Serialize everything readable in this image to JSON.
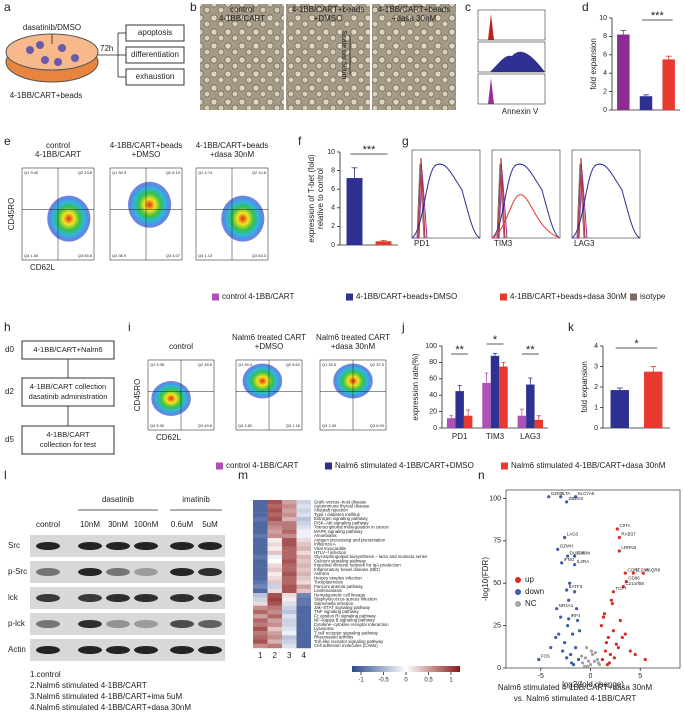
{
  "a": {
    "label": "a",
    "treatment": "dasatinib/DMSO",
    "time": "72h",
    "outcomes": [
      "apoptosis",
      "differentiation",
      "exhaustion"
    ],
    "cells": "4-1BB/CART+beads"
  },
  "b": {
    "label": "b",
    "images": [
      [
        "control",
        "4-1BB/CART"
      ],
      [
        "4-1BB/CART+beads",
        "+DMSO"
      ],
      [
        "4-1BB/CART+beads",
        "+dasa 30nM"
      ]
    ],
    "scale": "Scale bar 50um"
  },
  "c": {
    "label": "c",
    "xlabel": "Annexin V"
  },
  "d": {
    "label": "d",
    "type": "bar",
    "ylabel": "fold expansion",
    "values": [
      8.2,
      1.5,
      5.5
    ],
    "errors": [
      0.45,
      0.15,
      0.35
    ],
    "colors": [
      "#8e2b8f",
      "#2e3192",
      "#e8392f"
    ],
    "ylim": [
      0,
      10
    ],
    "yticks": [
      0,
      2,
      4,
      6,
      8,
      10
    ],
    "significance": "***"
  },
  "e": {
    "label": "e",
    "titles": [
      [
        "control",
        "4-1BB/CART"
      ],
      [
        "4-1BB/CART+beads",
        "+DMSO"
      ],
      [
        "4-1BB/CART+beads",
        "+dasa 30nM"
      ]
    ],
    "ylabel": "CD45RO",
    "xlabel": "CD62L",
    "quadrants": [
      [
        "Q1 9.40",
        "Q2 23.8",
        "Q4 1.60",
        "Q3 65.8"
      ],
      [
        "Q1 50.9",
        "Q2 8.19",
        "Q4 36.9",
        "Q3 4.07"
      ],
      [
        "Q1 4.74",
        "Q2 10.8",
        "Q4 1.13",
        "Q3 83.3"
      ]
    ]
  },
  "f": {
    "label": "f",
    "type": "bar",
    "ylabel": [
      "expression of T-bet (fold)",
      "relative to control"
    ],
    "values": [
      7.2,
      0.4
    ],
    "errors": [
      1.1,
      0.1
    ],
    "colors": [
      "#2e3192",
      "#e8392f"
    ],
    "ylim": [
      0,
      10
    ],
    "yticks": [
      0,
      2,
      4,
      6,
      8,
      10
    ],
    "significance": "***"
  },
  "g": {
    "label": "g",
    "markers": [
      "PD1",
      "TIM3",
      "LAG3"
    ]
  },
  "legend1": [
    {
      "name": "control 4-1BB/CART",
      "color": "#b04fb5"
    },
    {
      "name": "4-1BB/CART+beads+DMSO",
      "color": "#2e3192"
    },
    {
      "name": "4-1BB/CART+beads+dasa 30nM",
      "color": "#e8392f"
    },
    {
      "name": "isotype",
      "color": "#7d6b63"
    }
  ],
  "h": {
    "label": "h",
    "steps": [
      {
        "day": "d0",
        "text": [
          "4-1BB/CART+Nalm6"
        ]
      },
      {
        "day": "d2",
        "text": [
          "4-1BB/CART collection",
          "dasatinib administration"
        ]
      },
      {
        "day": "d5",
        "text": [
          "4-1BB/CART",
          "collection for test"
        ]
      }
    ]
  },
  "i": {
    "label": "i",
    "titles": [
      [
        "control"
      ],
      [
        "Nalm6 treated CART",
        "+DMSO"
      ],
      [
        "Nalm6 treated CART",
        "+dasa 30nM"
      ]
    ],
    "ylabel": "CD45RO",
    "xlabel": "CD62L",
    "quadrants": [
      [
        "Q1 5.35",
        "Q2 39.5",
        "Q4 5.30",
        "Q3 49.8"
      ],
      [
        "Q1 90.4",
        "Q2 5.62",
        "Q4 2.82",
        "Q3 1.16"
      ],
      [
        "Q1 53.5",
        "Q2 37.3",
        "Q4 2.30",
        "Q3 6.90"
      ]
    ]
  },
  "j": {
    "label": "j",
    "type": "grouped-bar",
    "ylabel": "expression rate(%)",
    "categories": [
      "PD1",
      "TIM3",
      "LAG3"
    ],
    "series": [
      {
        "name": "control 4-1BB/CART",
        "color": "#b04fb5",
        "values": [
          12,
          55,
          15
        ],
        "errors": [
          3,
          12,
          8
        ]
      },
      {
        "name": "Nalm6 stimulated 4-1BB/CART+DMSO",
        "color": "#2e3192",
        "values": [
          45,
          88,
          53
        ],
        "errors": [
          7,
          3,
          8
        ]
      },
      {
        "name": "Nalm6 stimulated 4-1BB/CART+dasa 30nM",
        "color": "#e8392f",
        "values": [
          15,
          75,
          10
        ],
        "errors": [
          7,
          5,
          5
        ]
      }
    ],
    "ylim": [
      0,
      100
    ],
    "yticks": [
      0,
      20,
      40,
      60,
      80,
      100
    ],
    "significance": [
      "**",
      "*",
      "**"
    ]
  },
  "k": {
    "label": "k",
    "type": "bar",
    "ylabel": "fold expansion",
    "values": [
      1.85,
      2.75
    ],
    "errors": [
      0.1,
      0.25
    ],
    "colors": [
      "#2e3192",
      "#e8392f"
    ],
    "ylim": [
      0,
      4
    ],
    "yticks": [
      0,
      1,
      2,
      3,
      4
    ],
    "significance": "*"
  },
  "l": {
    "label": "l",
    "lanes": [
      "control",
      "10nM",
      "30nM",
      "100nM",
      "0.6uM",
      "5uM"
    ],
    "drugs": [
      "dasatinib",
      "imatinib"
    ],
    "proteins": [
      "Src",
      "p-Src",
      "lck",
      "p-lck",
      "Actin"
    ],
    "notes": [
      "1.control",
      "2.Nalm6  stimulated 4-1BB/CART",
      "3.Nalm6  stimulated 4-1BB/CART+ima 5uM",
      "4.Nalm6  stimulated 4-1BB/CART+dasa 30nM"
    ]
  },
  "m": {
    "label": "m",
    "type": "heatmap",
    "columns": [
      "1",
      "2",
      "3",
      "4"
    ],
    "rows": [
      "Graft−versus−host disease",
      "Autoimmune thyroid disease",
      "Allograft rejection",
      "Type I diabetes mellitus",
      "Estrogen signaling pathway",
      "PI3K−Akt signaling pathway",
      "Transcriptional misregulation in cancer",
      "MAPK signaling pathway",
      "Amoebiasis",
      "Antigen processing and presentation",
      "Influenza A",
      "Viral myocarditis",
      "HTLV−I infection",
      "Glycosphingolipid biosynthesis − lacto and neolacto series",
      "Calcium signaling pathway",
      "Intestinal immune network for IgA production",
      "Inflammatory bowel disease (IBD)",
      "Asthma",
      "Herpes simplex infection",
      "Toxoplasmosis",
      "Fanconi anemia pathway",
      "Leishmaniasis",
      "Hematopoietic cell lineage",
      "Staphylococcus aureus infection",
      "Salmonella infection",
      "Jak−STAT signaling pathway",
      "TNF signaling pathway",
      "Fc epsilon RI signaling pathway",
      "NF−kappa B signaling pathway",
      "Cytokine−cytokine receptor interaction",
      "Lysosome",
      "T cell receptor signaling pathway",
      "Rheumatoid arthritis",
      "Toll−like receptor signaling pathway",
      "Cell adhesion molecules (CAMs)"
    ],
    "values": [
      [
        -1,
        0.9,
        0.5,
        -0.3
      ],
      [
        -1,
        0.8,
        0.6,
        -0.2
      ],
      [
        -1,
        0.9,
        0.5,
        -0.3
      ],
      [
        -1,
        0.8,
        0.6,
        -0.2
      ],
      [
        -0.9,
        0.9,
        0.4,
        -0.4
      ],
      [
        -1,
        0.7,
        0.7,
        -0.3
      ],
      [
        -1,
        0.6,
        0.7,
        -0.2
      ],
      [
        -1,
        0.5,
        0.8,
        -0.1
      ],
      [
        -0.9,
        0.6,
        0.6,
        -0.1
      ],
      [
        -1,
        0.1,
        0.9,
        0.2
      ],
      [
        -1,
        0.2,
        0.9,
        0.3
      ],
      [
        -1,
        0.1,
        0.8,
        0.4
      ],
      [
        -1,
        0.3,
        0.8,
        0.2
      ],
      [
        -0.9,
        -0.1,
        0.8,
        0.4
      ],
      [
        -1,
        0,
        0.9,
        0.3
      ],
      [
        -1,
        0.2,
        0.8,
        0.4
      ],
      [
        -1,
        0.3,
        0.8,
        0.3
      ],
      [
        -1,
        0.1,
        0.9,
        0.4
      ],
      [
        -1,
        0.2,
        0.8,
        0.3
      ],
      [
        -0.9,
        0.3,
        0.8,
        0.2
      ],
      [
        -0.8,
        -0.3,
        0.9,
        0.5
      ],
      [
        -1,
        0.2,
        0.9,
        0.3
      ],
      [
        -0.4,
        0.9,
        0.2,
        -0.8
      ],
      [
        -0.3,
        1,
        0.1,
        -0.9
      ],
      [
        0.2,
        0.9,
        -0.2,
        -0.9
      ],
      [
        0.6,
        0.7,
        -0.3,
        -1
      ],
      [
        0.8,
        0.6,
        -0.4,
        -1
      ],
      [
        0.5,
        0.8,
        -0.2,
        -1
      ],
      [
        0.8,
        0.5,
        -0.3,
        -1
      ],
      [
        0.7,
        0.6,
        -0.3,
        -1
      ],
      [
        0.9,
        0.3,
        -0.2,
        -1
      ],
      [
        0.7,
        0.5,
        -0.1,
        -1
      ],
      [
        0.8,
        0.6,
        -0.4,
        -1
      ],
      [
        0.9,
        0.4,
        -0.3,
        -1
      ],
      [
        0.6,
        0.7,
        -0.2,
        -1
      ]
    ],
    "clim": [
      -1.2,
      1.2
    ],
    "cticks": [
      -1,
      -0.5,
      0,
      0.5,
      1
    ]
  },
  "n": {
    "label": "n",
    "type": "scatter",
    "xlabel": "log2(fold change)",
    "ylabel": "-log10(FDR)",
    "caption": [
      "Nalm6  stimulated 4-1BB/CART+dasa 30nM",
      "vs. Nalm6  stimulated 4-1BB/CART"
    ],
    "xlim": [
      -8.5,
      9
    ],
    "ylim": [
      0,
      105
    ],
    "xticks": [
      -5,
      0,
      5
    ],
    "yticks": [
      0,
      25,
      50,
      75,
      100
    ],
    "series": [
      {
        "name": "up",
        "color": "#d62e26",
        "x": [
          1.2,
          1.5,
          1.8,
          2.0,
          2.3,
          2.6,
          3.0,
          1.4,
          1.9,
          2.2,
          2.8,
          3.5,
          1.1,
          1.6,
          2.4,
          4.0,
          1.3,
          2.1,
          1.7,
          3.2,
          4.5,
          5.5
        ],
        "y": [
          5,
          10,
          18,
          8,
          22,
          14,
          28,
          32,
          3,
          38,
          12,
          20,
          25,
          15,
          6,
          10,
          30,
          40,
          2,
          18,
          8,
          5
        ]
      },
      {
        "name": "down",
        "color": "#3f5ca8",
        "x": [
          -1.2,
          -1.5,
          -1.8,
          -2.0,
          -2.3,
          -2.6,
          -3.0,
          -1.4,
          -1.9,
          -2.2,
          -2.8,
          -3.5,
          -1.1,
          -1.6,
          -2.4,
          -4.0,
          -1.3,
          -2.1,
          -1.7,
          -3.2
        ],
        "y": [
          5,
          12,
          20,
          8,
          25,
          15,
          30,
          35,
          3,
          40,
          10,
          18,
          22,
          45,
          6,
          12,
          28,
          50,
          2,
          20
        ]
      },
      {
        "name": "NC",
        "color": "#a8a39c",
        "x": [
          -0.8,
          -0.5,
          -0.3,
          0,
          0.2,
          0.4,
          0.7,
          0.9,
          -0.9,
          -0.6,
          0.1,
          0.5,
          -0.2,
          0.8,
          -0.4
        ],
        "y": [
          3,
          6,
          1,
          2,
          8,
          4,
          5,
          2,
          7,
          1,
          10,
          9,
          4,
          3,
          12
        ]
      }
    ],
    "genes": [
      {
        "name": "GZMB",
        "x": -4.2,
        "y": 101
      },
      {
        "name": "LTA",
        "x": -3.0,
        "y": 101
      },
      {
        "name": "SLC7A5",
        "x": -1.5,
        "y": 101
      },
      {
        "name": "ZBED2",
        "x": -2.4,
        "y": 98
      },
      {
        "name": "LAG3",
        "x": -2.6,
        "y": 77
      },
      {
        "name": "GZMH",
        "x": -3.3,
        "y": 70
      },
      {
        "name": "DUSP6",
        "x": -2.3,
        "y": 66
      },
      {
        "name": "FURIN",
        "x": -1.6,
        "y": 66
      },
      {
        "name": "IFNG",
        "x": -2.9,
        "y": 62
      },
      {
        "name": "IL2RA",
        "x": -1.6,
        "y": 61
      },
      {
        "name": "CIITA",
        "x": 2.7,
        "y": 82
      },
      {
        "name": "RAB37",
        "x": 2.9,
        "y": 77
      },
      {
        "name": "LRRN3",
        "x": 2.9,
        "y": 69
      },
      {
        "name": "CORT",
        "x": 3.5,
        "y": 56
      },
      {
        "name": "SLFN5",
        "x": 4.3,
        "y": 56
      },
      {
        "name": "PAQR8",
        "x": 5.3,
        "y": 56
      },
      {
        "name": "CD96",
        "x": 3.6,
        "y": 51
      },
      {
        "name": "C21orf58",
        "x": 3.3,
        "y": 48
      },
      {
        "name": "TCF7",
        "x": 2.3,
        "y": 45
      },
      {
        "name": "BATF3",
        "x": -2.4,
        "y": 46
      },
      {
        "name": "NR4A1",
        "x": -3.4,
        "y": 35
      },
      {
        "name": "IRF4",
        "x": -2.2,
        "y": 29
      },
      {
        "name": "FOS",
        "x": -5.2,
        "y": 5
      }
    ]
  }
}
